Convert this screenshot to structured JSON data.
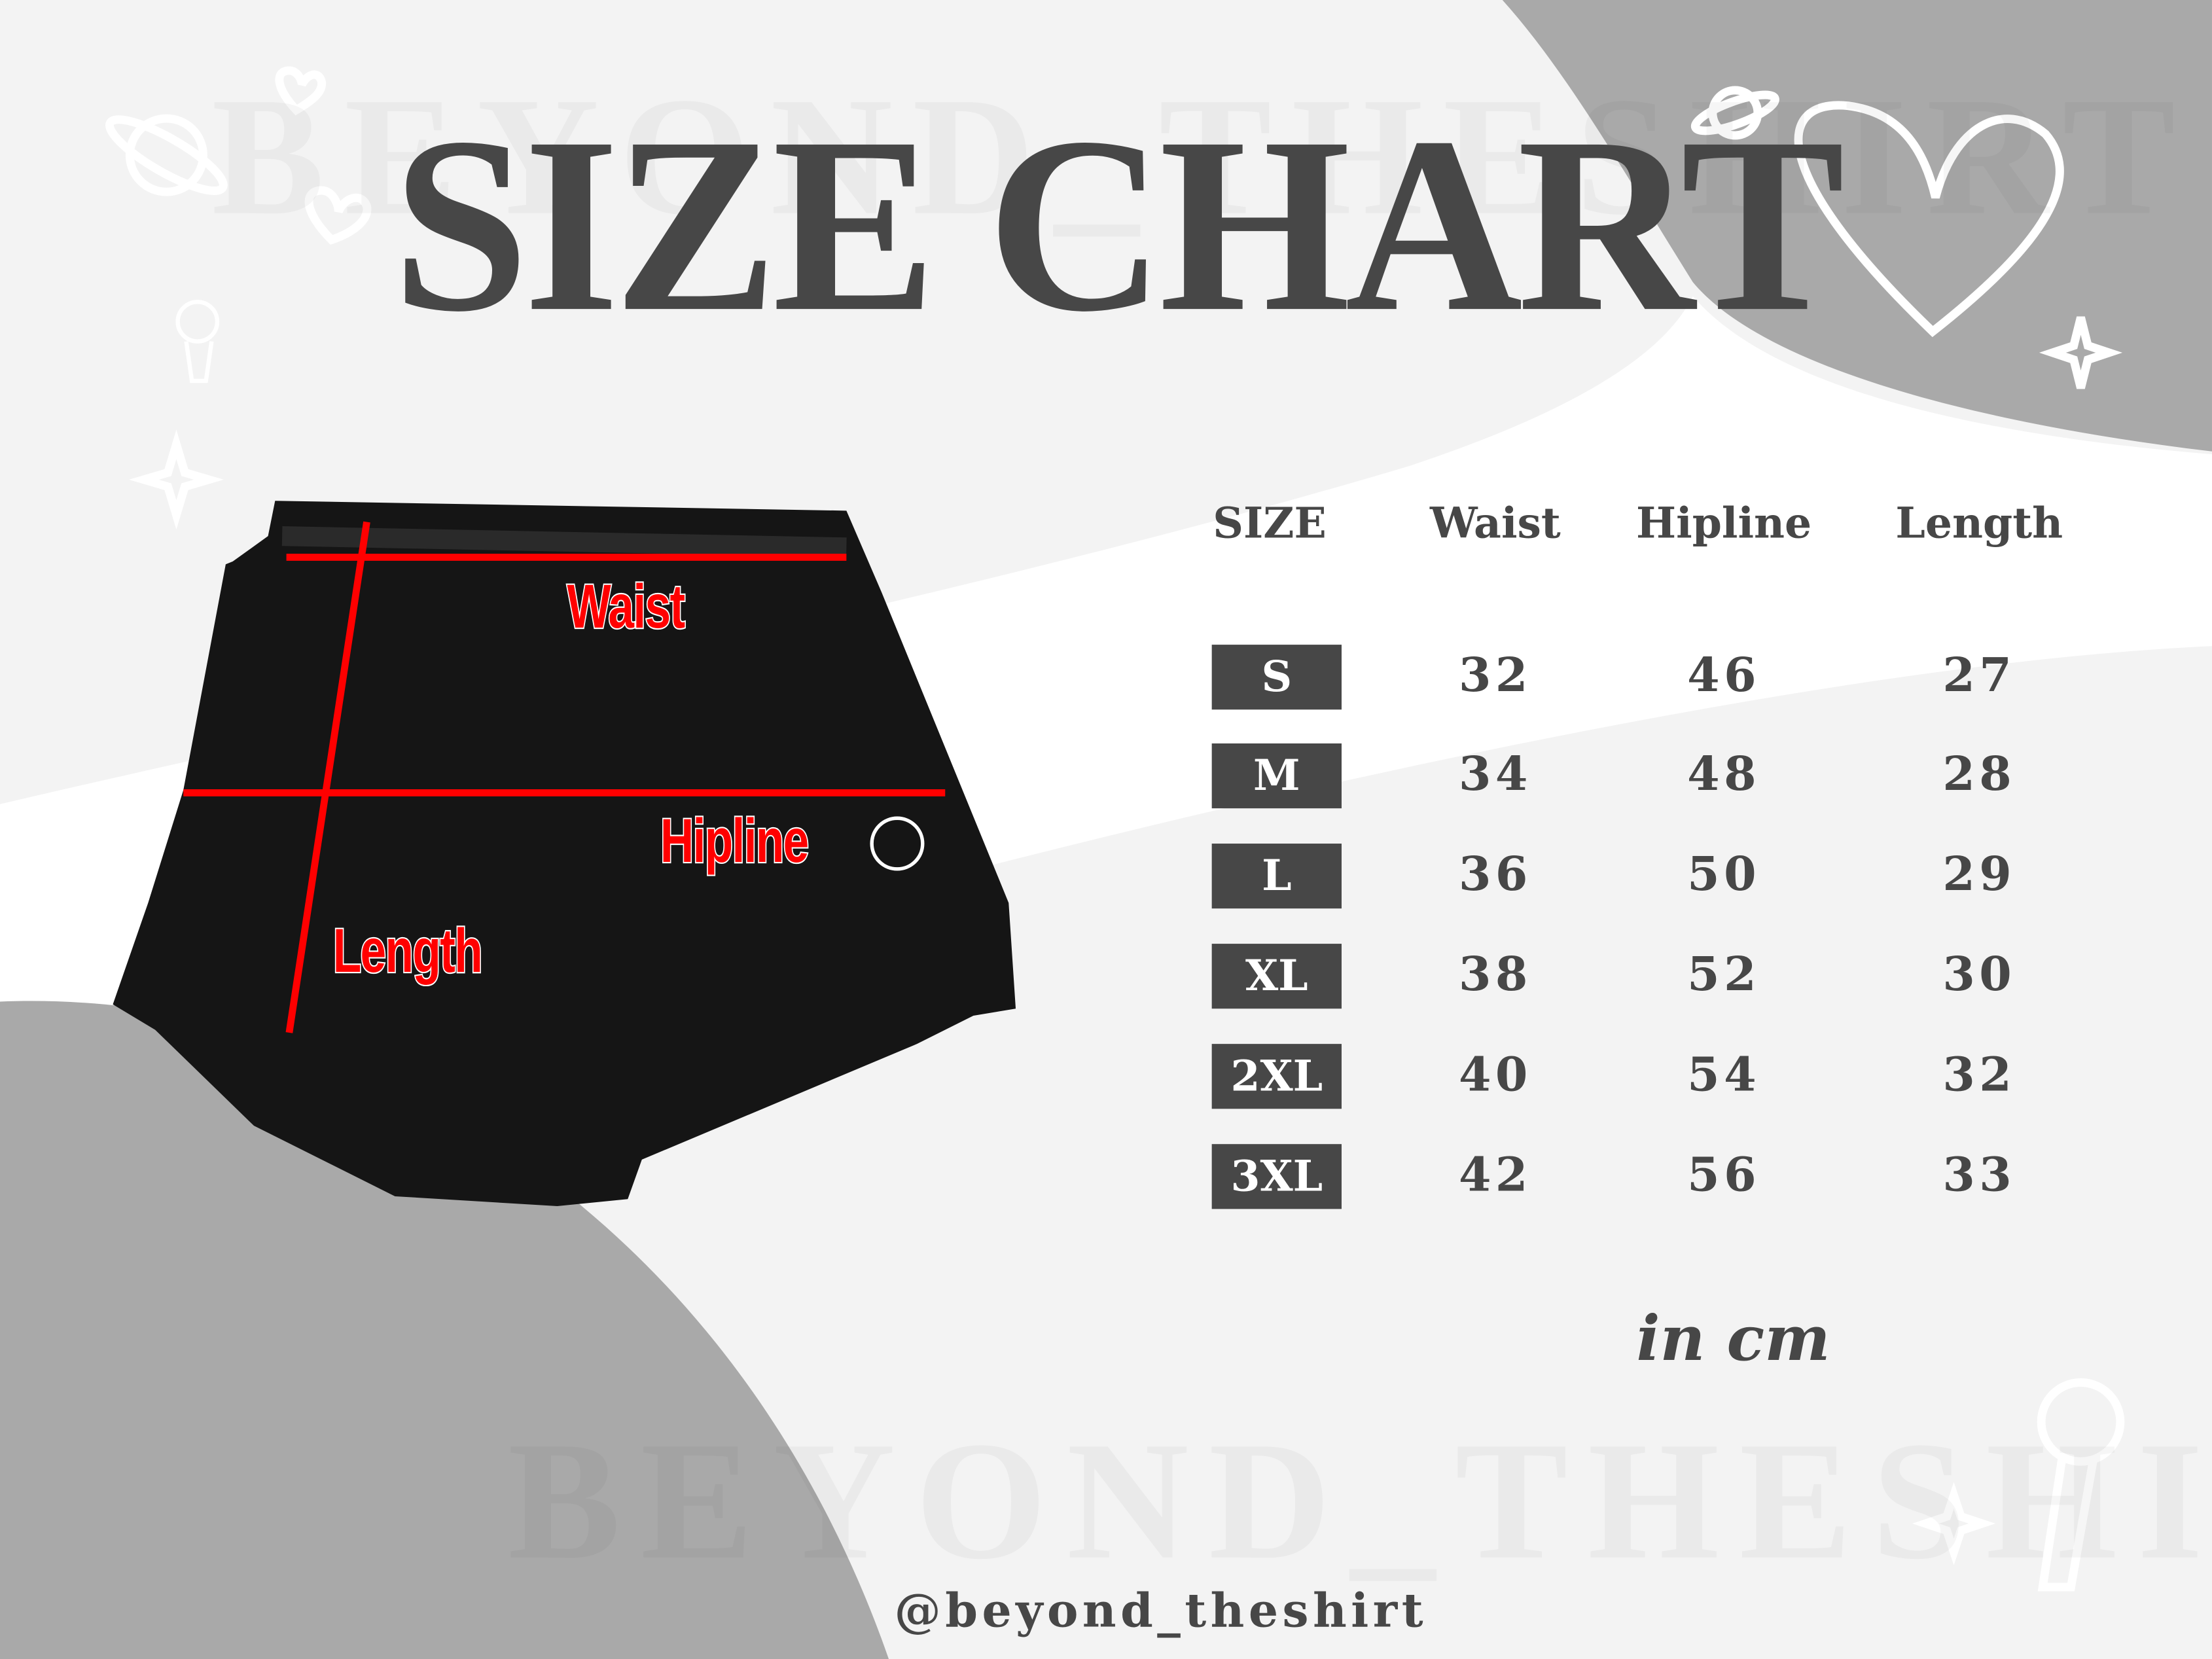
{
  "title": "SIZE CHART",
  "watermark": "BEYOND_THESHIRT",
  "colors": {
    "dark": "#474747",
    "grey": "#a9a9a9",
    "light": "#f3f3f3",
    "measure_line": "#ff0000"
  },
  "garment_labels": {
    "waist": "Waist",
    "hipline": "Hipline",
    "length": "Length"
  },
  "table": {
    "headers": [
      "SIZE",
      "Waist",
      "Hipline",
      "Length"
    ],
    "rows": [
      {
        "size": "S",
        "waist": "32",
        "hipline": "46",
        "length": "27"
      },
      {
        "size": "M",
        "waist": "34",
        "hipline": "48",
        "length": "28"
      },
      {
        "size": "L",
        "waist": "36",
        "hipline": "50",
        "length": "29"
      },
      {
        "size": "XL",
        "waist": "38",
        "hipline": "52",
        "length": "30"
      },
      {
        "size": "2XL",
        "waist": "40",
        "hipline": "54",
        "length": "32"
      },
      {
        "size": "3XL",
        "waist": "42",
        "hipline": "56",
        "length": "33"
      }
    ],
    "unit": "in cm"
  },
  "handle": "@beyond_theshirt",
  "decor_icons": [
    "heart-icon",
    "planet-icon",
    "sparkle-icon",
    "microphone-icon"
  ]
}
